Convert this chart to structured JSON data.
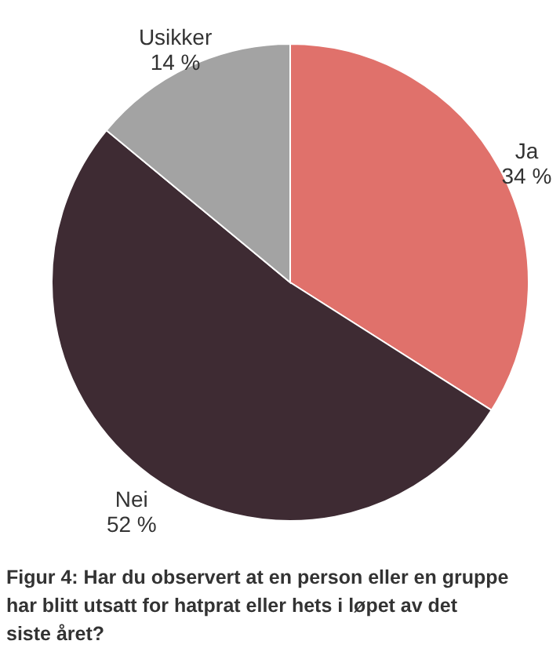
{
  "chart_data": {
    "type": "pie",
    "categories": [
      "Ja",
      "Nei",
      "Usikker"
    ],
    "values": [
      34,
      52,
      14
    ],
    "value_labels": [
      "34 %",
      "52 %",
      "14 %"
    ],
    "colors": [
      "#e0716b",
      "#3e2b33",
      "#a3a3a3"
    ],
    "annotations": [
      "Figur 4: Har du observert at en person eller en gruppe har blitt utsatt for hatprat eller hets i løpet av det siste året?"
    ]
  }
}
